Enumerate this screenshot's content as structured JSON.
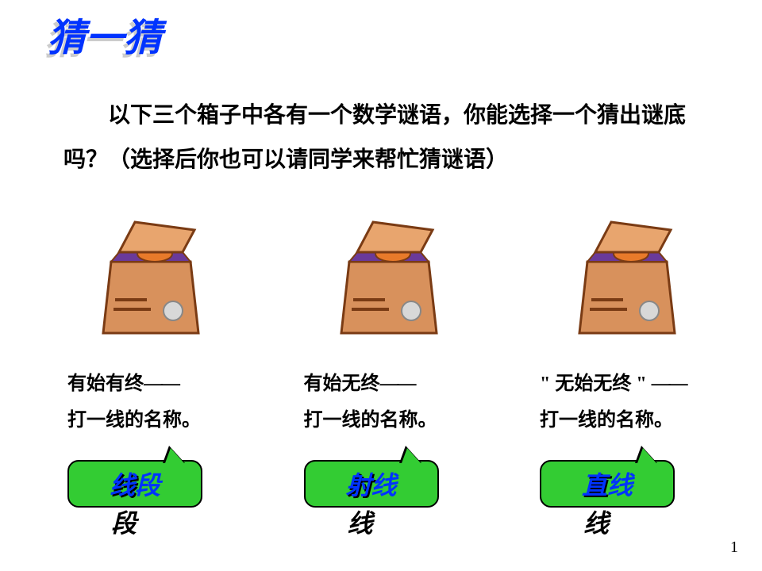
{
  "title": "猜一猜",
  "intro": "以下三个箱子中各有一个数学谜语，你能选择一个猜出谜底吗？（选择后你也可以请同学来帮忙猜谜语）",
  "riddles": [
    {
      "line1_pre": "有始有终",
      "dash": "——",
      "line2": "打一线的名称。"
    },
    {
      "line1_pre": "有始无终",
      "dash": "——",
      "line2": "打一线的名称。"
    },
    {
      "line1_pre": "\" 无始无终 \"",
      "dash": "——",
      "line2": "打一线的名称。"
    }
  ],
  "answers": [
    "线段",
    "射线",
    "直线"
  ],
  "page_number": "1",
  "box_svg": {
    "body_fill": "#d8915c",
    "body_stroke": "#7a3b14",
    "lid_fill": "#e8a56e",
    "inside_fill": "#6a3a9a",
    "orange_fill": "#e87a2a",
    "gray_circle": "#d8d8d8",
    "gray_stroke": "#888888"
  },
  "style": {
    "title_color": "#0033ff",
    "title_shadow": "#cccccc",
    "answer_bg": "#33cc33",
    "answer_text": "#0033ff",
    "answer_text_shadow": "#000000",
    "text_color": "#000000",
    "bg": "#ffffff",
    "title_fontsize": 48,
    "intro_fontsize": 28,
    "riddle_fontsize": 24,
    "answer_fontsize": 32
  }
}
